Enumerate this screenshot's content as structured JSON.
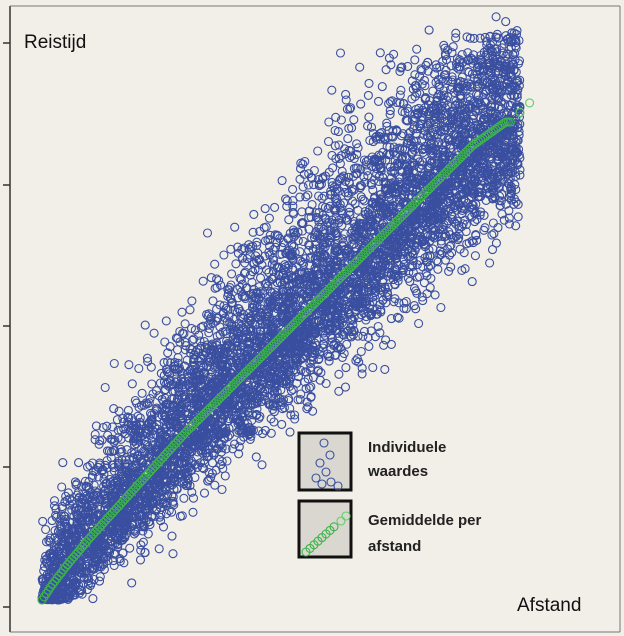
{
  "chart_data": {
    "type": "scatter",
    "title": "",
    "xlabel": "Afstand",
    "ylabel": "Reistijd",
    "x_ticks_labeled": false,
    "y_ticks_labeled": false,
    "grid": false,
    "legend_position": "bottom-right",
    "background_color": "#f1efe7",
    "series": [
      {
        "name": "Individuele waardes",
        "marker": "open-circle",
        "color": "#3a4fa0",
        "description_values": {
          "x_range": [
            0,
            1
          ],
          "trend": "increasing",
          "spread": "wide, above-biased"
        }
      },
      {
        "name": "Gemiddelde per afstand",
        "marker": "open-circle",
        "color": "#3cb54a",
        "mean_line_points": [
          [
            0.0,
            0.0
          ],
          [
            0.02,
            0.03
          ],
          [
            0.05,
            0.07
          ],
          [
            0.1,
            0.13
          ],
          [
            0.2,
            0.24
          ],
          [
            0.3,
            0.35
          ],
          [
            0.4,
            0.45
          ],
          [
            0.5,
            0.55
          ],
          [
            0.6,
            0.65
          ],
          [
            0.7,
            0.75
          ],
          [
            0.8,
            0.85
          ],
          [
            0.9,
            0.95
          ],
          [
            0.97,
            1.0
          ]
        ]
      }
    ],
    "legend": [
      {
        "label_line1": "Individuele",
        "label_line2": "waardes",
        "swatch": "blue-circles"
      },
      {
        "label_line1": "Gemiddelde per",
        "label_line2": "afstand",
        "swatch": "green-circles"
      }
    ]
  }
}
